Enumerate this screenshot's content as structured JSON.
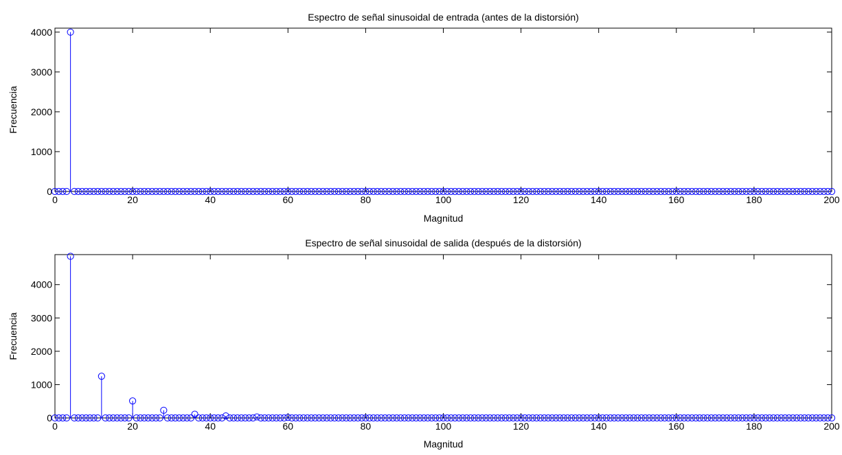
{
  "chart_data": [
    {
      "type": "stem",
      "title": "Espectro de señal sinusoidal de entrada (antes de la distorsión)",
      "xlabel": "Magnitud",
      "ylabel": "Frecuencia",
      "xlim": [
        0,
        200
      ],
      "ylim": [
        0,
        4100
      ],
      "x_ticks": [
        0,
        20,
        40,
        60,
        80,
        100,
        120,
        140,
        160,
        180,
        200
      ],
      "y_ticks": [
        0,
        1000,
        2000,
        3000,
        4000
      ],
      "x_tick_labels": [
        "0",
        "20",
        "40",
        "60",
        "80",
        "100",
        "120",
        "140",
        "160",
        "180",
        "200"
      ],
      "y_tick_labels": [
        "0",
        "1000",
        "2000",
        "3000",
        "4000"
      ],
      "x_range": [
        0,
        200
      ],
      "x_step": 1,
      "nonzero_points": [
        {
          "x": 4,
          "y": 4000
        }
      ],
      "grid": false,
      "color": "#0000ff"
    },
    {
      "type": "stem",
      "title": "Espectro de señal sinusoidal de salida (después de la distorsión)",
      "xlabel": "Magnitud",
      "ylabel": "Frecuencia",
      "xlim": [
        0,
        200
      ],
      "ylim": [
        0,
        4900
      ],
      "x_ticks": [
        0,
        20,
        40,
        60,
        80,
        100,
        120,
        140,
        160,
        180,
        200
      ],
      "y_ticks": [
        0,
        1000,
        2000,
        3000,
        4000
      ],
      "x_tick_labels": [
        "0",
        "20",
        "40",
        "60",
        "80",
        "100",
        "120",
        "140",
        "160",
        "180",
        "200"
      ],
      "y_tick_labels": [
        "0",
        "1000",
        "2000",
        "3000",
        "4000"
      ],
      "x_range": [
        0,
        200
      ],
      "x_step": 1,
      "nonzero_points": [
        {
          "x": 4,
          "y": 4850
        },
        {
          "x": 12,
          "y": 1250
        },
        {
          "x": 20,
          "y": 510
        },
        {
          "x": 28,
          "y": 230
        },
        {
          "x": 36,
          "y": 110
        },
        {
          "x": 44,
          "y": 60
        },
        {
          "x": 52,
          "y": 30
        },
        {
          "x": 60,
          "y": 15
        }
      ],
      "grid": false,
      "color": "#0000ff"
    }
  ]
}
